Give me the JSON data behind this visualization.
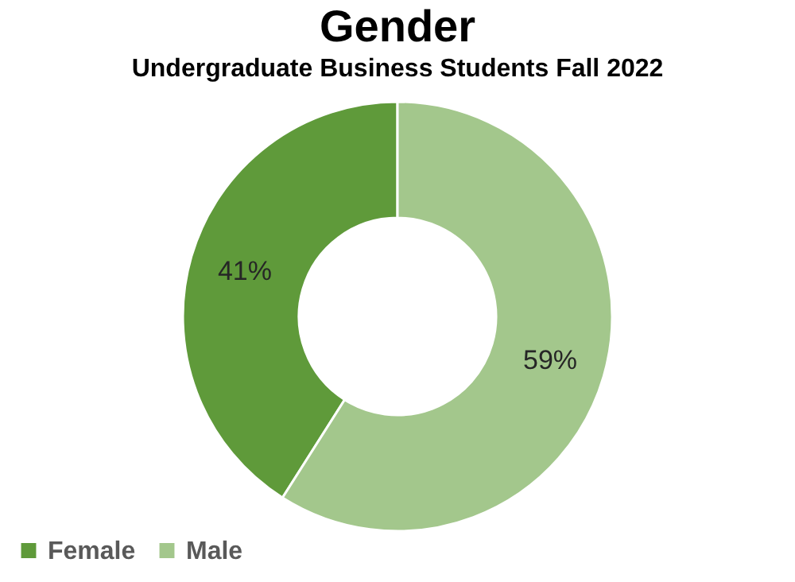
{
  "chart_data": {
    "type": "donut",
    "title": "Gender",
    "subtitle": "Undergraduate Business Students Fall 2022",
    "categories": [
      "Female",
      "Male"
    ],
    "values": [
      41,
      59
    ],
    "colors": [
      "#5f9a3a",
      "#a3c78c"
    ],
    "value_labels": [
      "41%",
      "59%"
    ],
    "legend": "bottom"
  }
}
